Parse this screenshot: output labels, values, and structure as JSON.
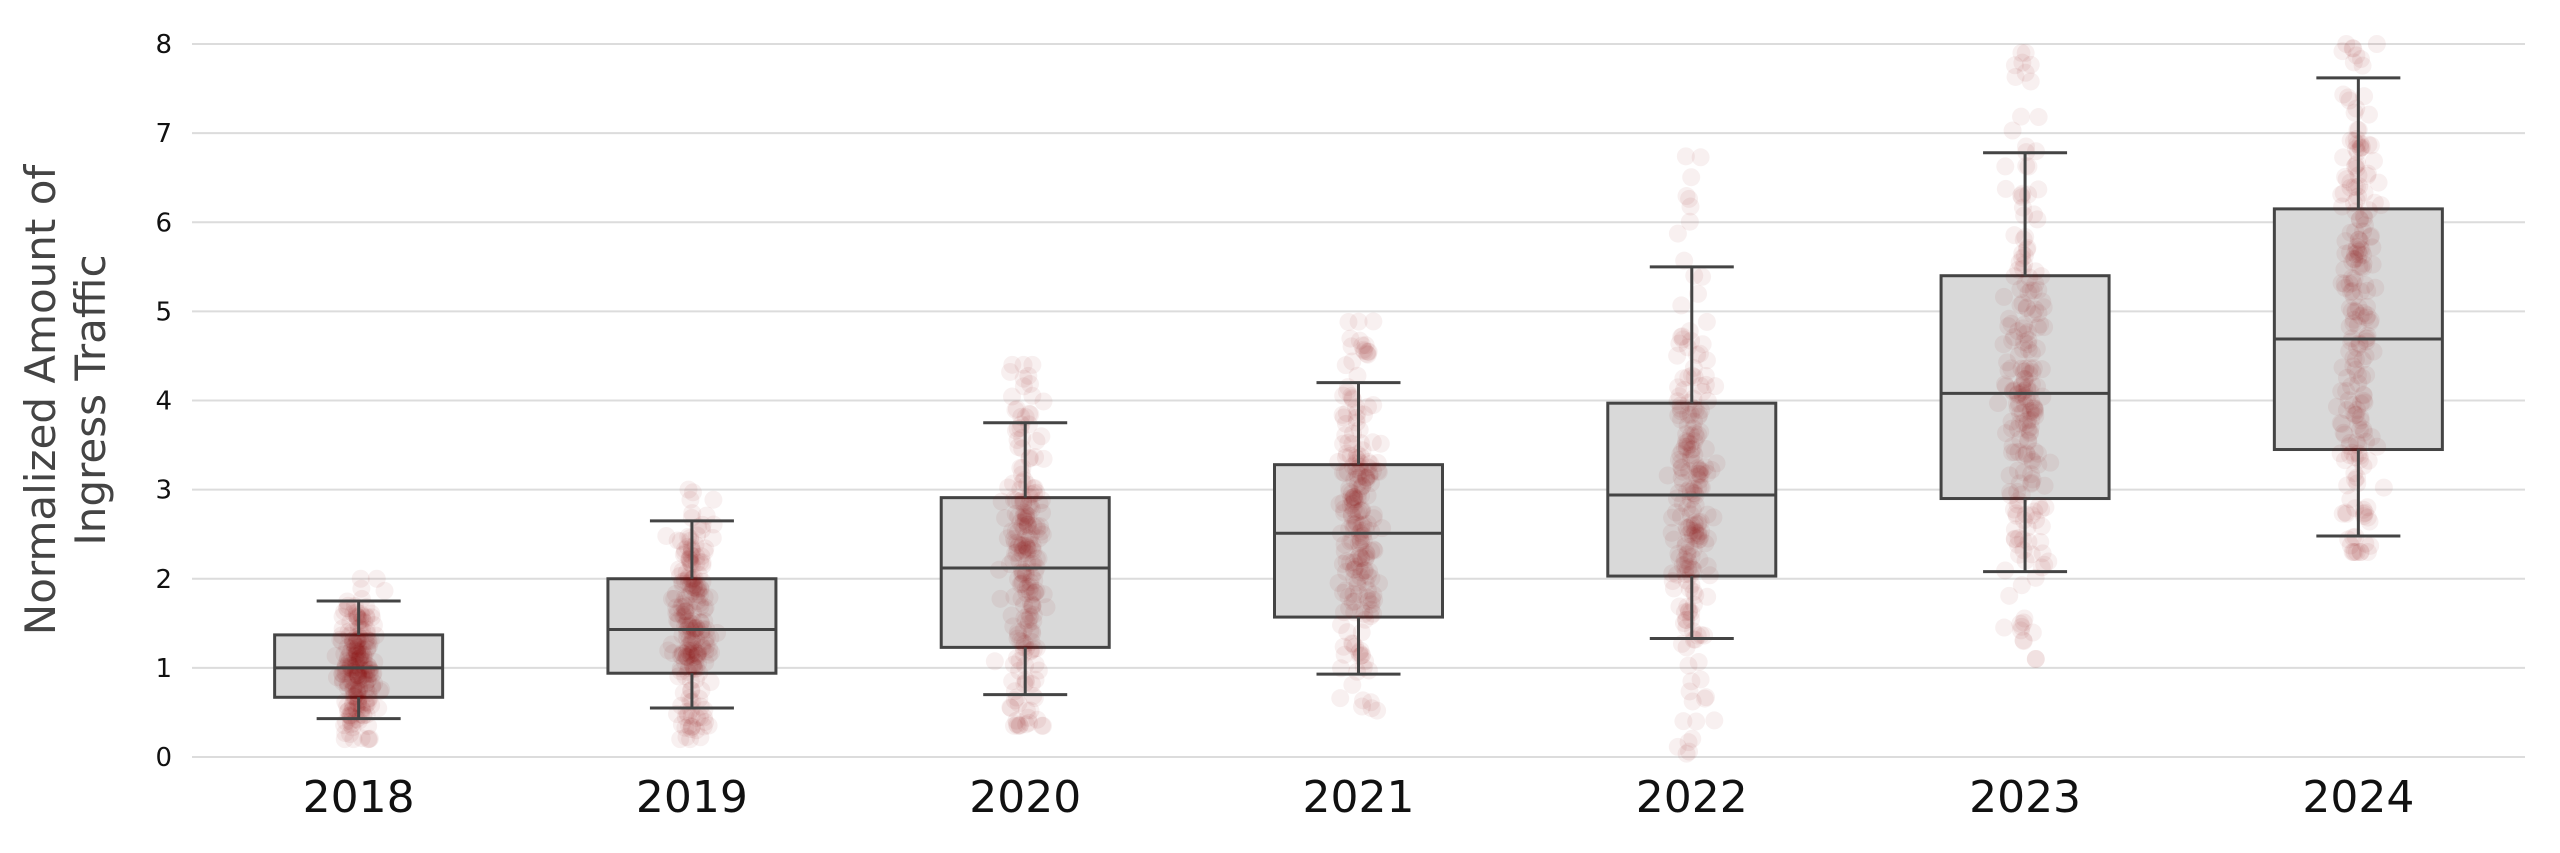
{
  "chart_data": {
    "type": "box",
    "title": "",
    "xlabel": "",
    "ylabel_lines": [
      "Normalized Amount of",
      "Ingress Traffic"
    ],
    "ylim": [
      0,
      8
    ],
    "yticks": [
      "0",
      "1",
      "2",
      "3",
      "4",
      "5",
      "6",
      "7",
      "8"
    ],
    "grid": "horizontal",
    "categories": [
      "2018",
      "2019",
      "2020",
      "2021",
      "2022",
      "2023",
      "2024"
    ],
    "boxes": [
      {
        "category": "2018",
        "whisker_low": 0.43,
        "q1": 0.67,
        "median": 1.0,
        "q3": 1.37,
        "whisker_high": 1.75
      },
      {
        "category": "2019",
        "whisker_low": 0.55,
        "q1": 0.94,
        "median": 1.43,
        "q3": 2.0,
        "whisker_high": 2.65
      },
      {
        "category": "2020",
        "whisker_low": 0.7,
        "q1": 1.23,
        "median": 2.12,
        "q3": 2.91,
        "whisker_high": 3.75
      },
      {
        "category": "2021",
        "whisker_low": 0.93,
        "q1": 1.57,
        "median": 2.51,
        "q3": 3.28,
        "whisker_high": 4.2
      },
      {
        "category": "2022",
        "whisker_low": 1.33,
        "q1": 2.03,
        "median": 2.94,
        "q3": 3.97,
        "whisker_high": 5.5
      },
      {
        "category": "2023",
        "whisker_low": 2.08,
        "q1": 2.9,
        "median": 4.08,
        "q3": 5.4,
        "whisker_high": 6.78
      },
      {
        "category": "2024",
        "whisker_low": 2.48,
        "q1": 3.45,
        "median": 4.69,
        "q3": 6.15,
        "whisker_high": 7.62
      }
    ],
    "point_ranges": [
      [
        0.2,
        2.0
      ],
      [
        0.2,
        3.0
      ],
      [
        0.35,
        4.4
      ],
      [
        0.4,
        4.9
      ],
      [
        0.0,
        7.0
      ],
      [
        1.1,
        7.9
      ],
      [
        2.3,
        8.0
      ]
    ],
    "colors": {
      "box_fill": "#d9d9d9",
      "box_edge": "#444444",
      "points": "#8b0000",
      "grid": "#dcdcdc"
    }
  }
}
